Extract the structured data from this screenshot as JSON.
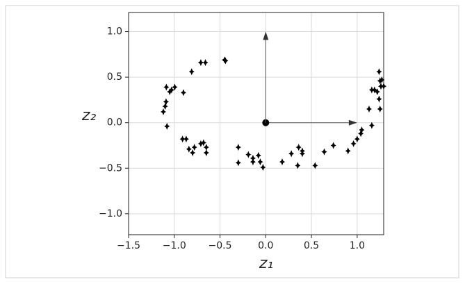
{
  "chart_data": {
    "type": "scatter",
    "xlabel": "z₁",
    "ylabel": "z₂",
    "color": "#000000",
    "x": [
      -1.087,
      -0.995,
      -1.05,
      -1.03,
      -1.09,
      -1.1,
      -1.12,
      -1.08,
      -0.9,
      -0.81,
      -0.71,
      -0.66,
      -0.45,
      -0.44,
      -0.91,
      -0.87,
      -0.84,
      -0.8,
      -0.78,
      -0.71,
      -0.68,
      -0.65,
      -0.65,
      -0.3,
      -0.3,
      -0.19,
      -0.14,
      -0.14,
      -0.08,
      -0.06,
      -0.03,
      0.18,
      0.28,
      0.36,
      0.4,
      0.4,
      0.35,
      0.54,
      0.64,
      0.74,
      0.9,
      0.96,
      1.0,
      1.04,
      1.05,
      1.16,
      1.13,
      1.16,
      1.19,
      1.24,
      1.25,
      1.26,
      1.27,
      1.25,
      1.24,
      1.22,
      1.29
    ],
    "values": [
      0.39,
      0.39,
      0.34,
      0.36,
      0.23,
      0.18,
      0.12,
      -0.04,
      0.33,
      0.56,
      0.66,
      0.66,
      0.69,
      0.68,
      -0.18,
      -0.18,
      -0.29,
      -0.33,
      -0.27,
      -0.23,
      -0.22,
      -0.27,
      -0.33,
      -0.27,
      -0.44,
      -0.35,
      -0.39,
      -0.43,
      -0.36,
      -0.43,
      -0.49,
      -0.43,
      -0.34,
      -0.27,
      -0.31,
      -0.34,
      -0.47,
      -0.47,
      -0.32,
      -0.25,
      -0.31,
      -0.23,
      -0.18,
      -0.12,
      -0.08,
      -0.03,
      0.15,
      0.36,
      0.36,
      0.56,
      0.46,
      0.4,
      0.47,
      0.15,
      0.26,
      0.34,
      0.4
    ],
    "arrows": [
      {
        "x": [
          0,
          1
        ],
        "y": [
          0,
          0
        ]
      },
      {
        "x": [
          0,
          0
        ],
        "y": [
          0,
          1
        ]
      }
    ],
    "xlim": [
      -1.5,
      1.29
    ],
    "ylim": [
      -1.23,
      1.21
    ],
    "xticks": [
      {
        "value": -1.5,
        "label": "−1.5"
      },
      {
        "value": -1.0,
        "label": "−1.0"
      },
      {
        "value": -0.5,
        "label": "−0.5"
      },
      {
        "value": 0.0,
        "label": "0.0"
      },
      {
        "value": 0.5,
        "label": "0.5"
      },
      {
        "value": 1.0,
        "label": "1.0"
      }
    ],
    "yticks": [
      {
        "value": -1.0,
        "label": "−1.0"
      },
      {
        "value": -0.5,
        "label": "−0.5"
      },
      {
        "value": 0.0,
        "label": "0.0"
      },
      {
        "value": 0.5,
        "label": "0.5"
      },
      {
        "value": 1.0,
        "label": "1.0"
      }
    ],
    "grid": true
  }
}
